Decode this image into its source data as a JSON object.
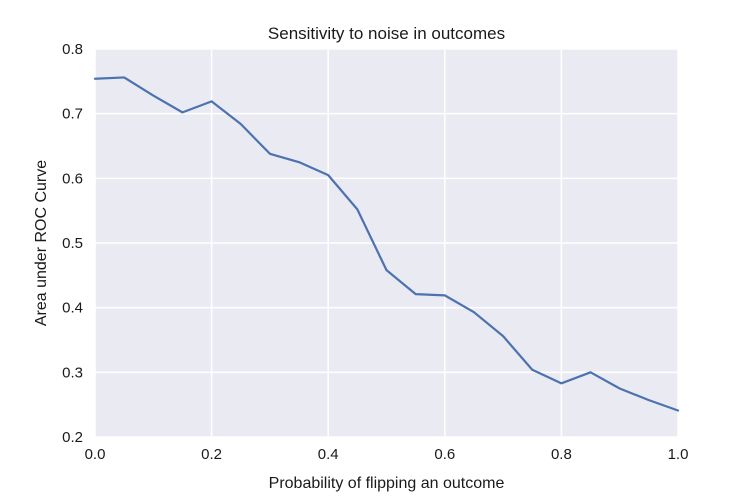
{
  "chart_data": {
    "type": "line",
    "title": "Sensitivity to noise in outcomes",
    "xlabel": "Probability of flipping an outcome",
    "ylabel": "Area under ROC Curve",
    "xlim": [
      0.0,
      1.0
    ],
    "ylim": [
      0.2,
      0.8
    ],
    "xticks": [
      0.0,
      0.2,
      0.4,
      0.6,
      0.8,
      1.0
    ],
    "xtick_labels": [
      "0.0",
      "0.2",
      "0.4",
      "0.6",
      "0.8",
      "1.0"
    ],
    "yticks": [
      0.2,
      0.3,
      0.4,
      0.5,
      0.6,
      0.7,
      0.8
    ],
    "ytick_labels": [
      "0.2",
      "0.3",
      "0.4",
      "0.5",
      "0.6",
      "0.7",
      "0.8"
    ],
    "grid": true,
    "style": {
      "plot_background": "#eaeaf2",
      "grid_color": "#ffffff",
      "line_color": "#4c72b0"
    },
    "series": [
      {
        "x": [
          0.0,
          0.05,
          0.1,
          0.15,
          0.2,
          0.25,
          0.3,
          0.35,
          0.4,
          0.45,
          0.5,
          0.55,
          0.6,
          0.65,
          0.7,
          0.75,
          0.8,
          0.85,
          0.9,
          0.95,
          1.0
        ],
        "values": [
          0.754,
          0.756,
          0.728,
          0.702,
          0.719,
          0.684,
          0.638,
          0.625,
          0.605,
          0.552,
          0.458,
          0.421,
          0.419,
          0.393,
          0.356,
          0.304,
          0.283,
          0.3,
          0.275,
          0.257,
          0.241
        ]
      }
    ]
  }
}
